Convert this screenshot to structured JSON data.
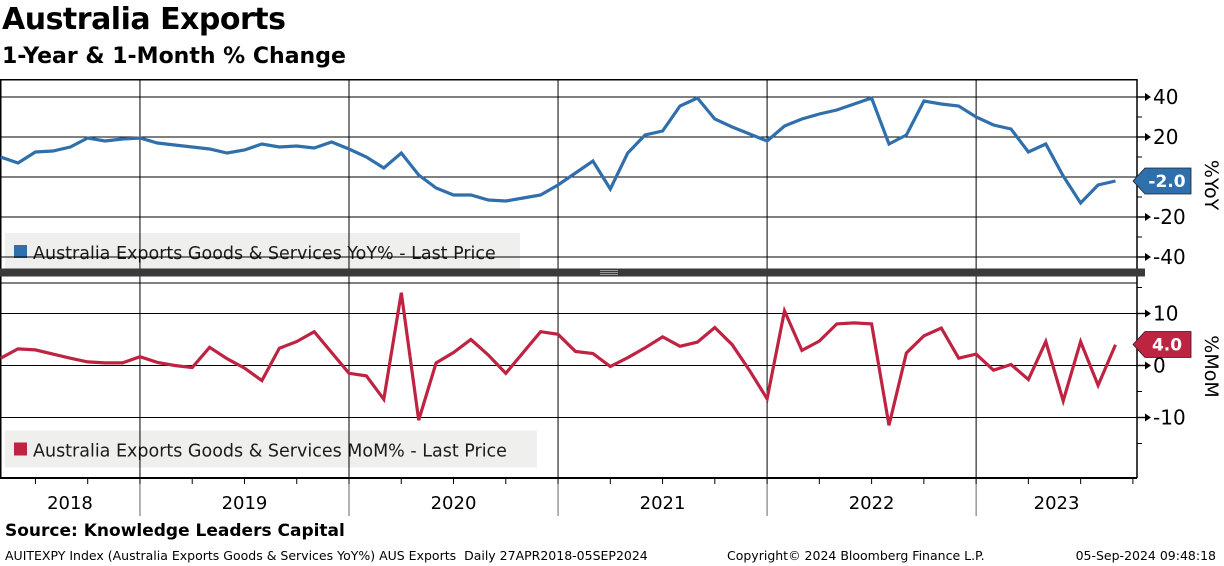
{
  "header": {
    "title": "Australia Exports",
    "subtitle": "1-Year & 1-Month % Change"
  },
  "top_panel": {
    "legend": "Australia Exports Goods & Services YoY% - Last Price",
    "axis_label": "%YoY",
    "last_value_badge": "-2.0",
    "accent_color": "#2e6fac"
  },
  "bottom_panel": {
    "legend": "Australia Exports Goods & Services MoM% - Last Price",
    "axis_label": "%MoM",
    "last_value_badge": "4.0",
    "accent_color": "#bf2342"
  },
  "x_axis": {
    "year_labels": [
      "2018",
      "2019",
      "2020",
      "2021",
      "2022",
      "2023"
    ]
  },
  "footer": {
    "source": "Source: Knowledge Leaders Capital",
    "info": "AUITEXPY Index (Australia Exports Goods & Services YoY%) AUS Exports  Daily 27APR2018-05SEP2024",
    "copyright": "Copyright© 2024 Bloomberg Finance L.P.",
    "timestamp": "05-Sep-2024 09:48:18"
  },
  "chart_data": [
    {
      "type": "line",
      "title": "Australia Exports Goods & Services YoY% - Last Price",
      "ylabel": "%YoY",
      "color": "#2e6fac",
      "x_start": "2018-05",
      "x_freq": "monthly",
      "x_end": "2023-09",
      "ylim": [
        -46.5,
        49
      ],
      "yticks_major": [
        40,
        20,
        0,
        -20,
        -40
      ],
      "yticks_minor": [
        30,
        10,
        -10,
        -30
      ],
      "last_value": -2.0,
      "values": [
        10,
        7,
        12.5,
        13,
        15,
        19.5,
        18,
        19,
        19.5,
        17,
        16,
        15,
        14,
        12,
        13.5,
        16.5,
        15,
        15.5,
        14.5,
        17.5,
        14,
        10,
        4.5,
        12,
        1,
        -5.5,
        -9,
        -9,
        -11.5,
        -12,
        -10.5,
        -9,
        -4,
        2,
        8,
        -6,
        12,
        21,
        23,
        35.5,
        39.5,
        29,
        25,
        21.5,
        18,
        25.5,
        29,
        31.5,
        33.5,
        36.5,
        39.5,
        16.5,
        21,
        38,
        36.5,
        35.5,
        30,
        26,
        24,
        12.5,
        16.5,
        0.5,
        -13,
        -4,
        -2
      ]
    },
    {
      "type": "line",
      "title": "Australia Exports Goods & Services MoM% - Last Price",
      "ylabel": "%MoM",
      "color": "#bf2342",
      "x_start": "2018-05",
      "x_freq": "monthly",
      "x_end": "2023-09",
      "ylim": [
        -21.6,
        15.9
      ],
      "yticks_major": [
        10,
        0,
        -10
      ],
      "yticks_minor": [
        15,
        5,
        -5,
        -15
      ],
      "last_value": 4.0,
      "values": [
        1.4,
        3.2,
        3,
        2.2,
        1.4,
        0.7,
        0.5,
        0.5,
        1.7,
        0.6,
        0,
        -0.4,
        3.5,
        1.3,
        -0.5,
        -2.9,
        3.3,
        4.6,
        6.5,
        2.5,
        -1.5,
        -2,
        -6.5,
        14,
        -10.5,
        0.5,
        2.5,
        5,
        2,
        -1.5,
        2.5,
        6.5,
        6,
        2.7,
        2.3,
        -0.2,
        1.5,
        3.4,
        5.5,
        3.7,
        4.5,
        7.3,
        4,
        -1,
        -6.4,
        10.5,
        2.9,
        4.7,
        8,
        8.2,
        8,
        -11.5,
        2.4,
        5.7,
        7.2,
        1.4,
        2.2,
        -0.9,
        0.2,
        -2.7,
        4.6,
        -6.8,
        4.6,
        -3.8,
        4
      ]
    }
  ]
}
